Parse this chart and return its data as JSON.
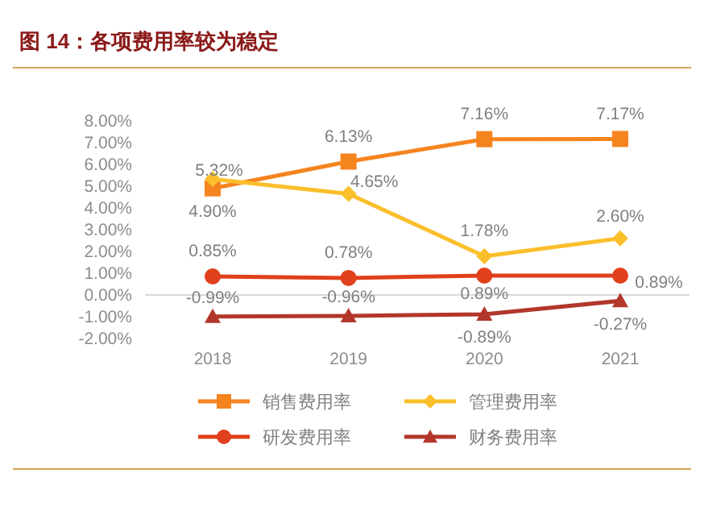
{
  "chart_data": {
    "type": "line",
    "title": "图 14：各项费用率较为稳定",
    "categories": [
      "2018",
      "2019",
      "2020",
      "2021"
    ],
    "ylim": [
      -2,
      8
    ],
    "yticks": [
      {
        "value": 8,
        "label": "8.00%"
      },
      {
        "value": 7,
        "label": "7.00%"
      },
      {
        "value": 6,
        "label": "6.00%"
      },
      {
        "value": 5,
        "label": "5.00%"
      },
      {
        "value": 4,
        "label": "4.00%"
      },
      {
        "value": 3,
        "label": "3.00%"
      },
      {
        "value": 2,
        "label": "2.00%"
      },
      {
        "value": 1,
        "label": "1.00%"
      },
      {
        "value": 0,
        "label": "0.00%"
      },
      {
        "value": -1,
        "label": "-1.00%"
      },
      {
        "value": -2,
        "label": "-2.00%"
      }
    ],
    "grid": false,
    "legend": "bottom",
    "ref_lines": [
      {
        "axis": "y",
        "value": 0,
        "color": "#d9d9d9"
      }
    ],
    "series": [
      {
        "name": "销售费用率",
        "color": "#f5841f",
        "marker": "square",
        "values": [
          4.9,
          6.13,
          7.16,
          7.17
        ],
        "value_labels": [
          "4.90%",
          "6.13%",
          "7.16%",
          "7.17%"
        ]
      },
      {
        "name": "管理费用率",
        "color": "#fbbf2c",
        "marker": "diamond",
        "values": [
          5.32,
          4.65,
          1.78,
          2.6
        ],
        "value_labels": [
          "5.32%",
          "4.65%",
          "1.78%",
          "2.60%"
        ]
      },
      {
        "name": "研发费用率",
        "color": "#e0401c",
        "marker": "circle",
        "values": [
          0.85,
          0.78,
          0.89,
          0.89
        ],
        "value_labels": [
          "0.85%",
          "0.78%",
          "0.89%",
          "0.89%"
        ]
      },
      {
        "name": "财务费用率",
        "color": "#b2372a",
        "marker": "triangle",
        "values": [
          -0.99,
          -0.96,
          -0.89,
          -0.27
        ],
        "value_labels": [
          "-0.99%",
          "-0.96%",
          "-0.89%",
          "-0.27%"
        ]
      }
    ]
  }
}
